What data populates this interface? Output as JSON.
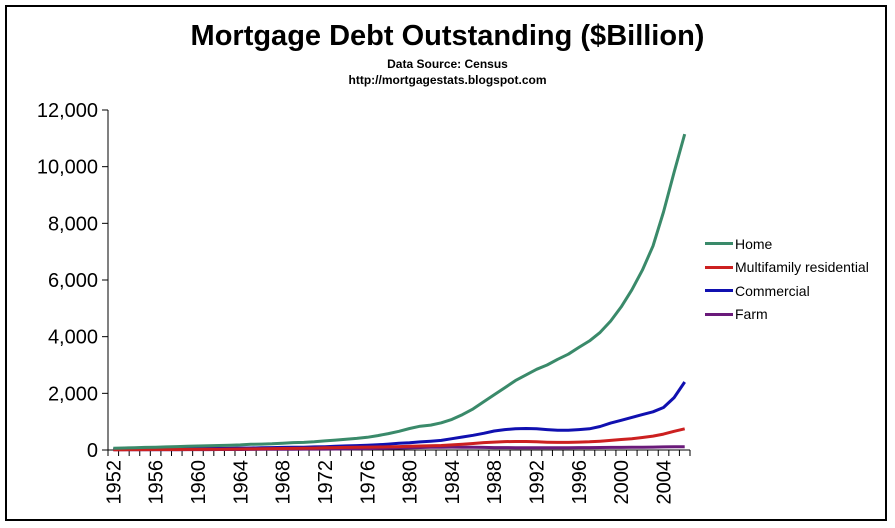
{
  "chart_data": {
    "type": "line",
    "title": "Mortgage Debt Outstanding ($Billion)",
    "subtitle": [
      "Data Source: Census",
      "http://mortgagestats.blogspot.com"
    ],
    "xlabel": "",
    "ylabel": "",
    "ylim": [
      0,
      12000
    ],
    "yticks": [
      "0",
      "2,000",
      "4,000",
      "6,000",
      "8,000",
      "10,000",
      "12,000"
    ],
    "xtick_labels": [
      "1952",
      "1956",
      "1960",
      "1964",
      "1968",
      "1972",
      "1976",
      "1980",
      "1984",
      "1988",
      "1992",
      "1996",
      "2000",
      "2004"
    ],
    "x": [
      1952,
      1953,
      1954,
      1955,
      1956,
      1957,
      1958,
      1959,
      1960,
      1961,
      1962,
      1963,
      1964,
      1965,
      1966,
      1967,
      1968,
      1969,
      1970,
      1971,
      1972,
      1973,
      1974,
      1975,
      1976,
      1977,
      1978,
      1979,
      1980,
      1981,
      1982,
      1983,
      1984,
      1985,
      1986,
      1987,
      1988,
      1989,
      1990,
      1991,
      1992,
      1993,
      1994,
      1995,
      1996,
      1997,
      1998,
      1999,
      2000,
      2001,
      2002,
      2003,
      2004,
      2005,
      2006
    ],
    "legend_position": "right",
    "grid": false,
    "series": [
      {
        "name": "Home",
        "color": "#3A8A6A",
        "values": [
          60,
          70,
          80,
          90,
          100,
          110,
          120,
          130,
          140,
          150,
          160,
          170,
          180,
          200,
          210,
          220,
          240,
          260,
          270,
          290,
          320,
          350,
          380,
          410,
          450,
          510,
          580,
          660,
          760,
          840,
          880,
          960,
          1080,
          1250,
          1450,
          1700,
          1950,
          2200,
          2450,
          2650,
          2850,
          3000,
          3200,
          3380,
          3620,
          3850,
          4150,
          4550,
          5050,
          5650,
          6350,
          7200,
          8400,
          9800,
          11150
        ]
      },
      {
        "name": "Multifamily residential",
        "color": "#CC2020",
        "values": [
          10,
          12,
          13,
          15,
          16,
          17,
          18,
          20,
          22,
          25,
          28,
          32,
          36,
          40,
          44,
          48,
          52,
          58,
          62,
          68,
          76,
          84,
          92,
          98,
          102,
          106,
          112,
          120,
          130,
          140,
          148,
          160,
          180,
          205,
          230,
          260,
          280,
          295,
          300,
          300,
          290,
          275,
          270,
          270,
          280,
          290,
          310,
          340,
          370,
          400,
          440,
          490,
          560,
          660,
          750
        ]
      },
      {
        "name": "Commercial",
        "color": "#1010B0",
        "values": [
          20,
          22,
          25,
          28,
          32,
          36,
          40,
          44,
          48,
          52,
          56,
          60,
          66,
          72,
          78,
          84,
          90,
          96,
          100,
          108,
          118,
          130,
          144,
          155,
          165,
          185,
          210,
          235,
          255,
          285,
          310,
          340,
          400,
          460,
          520,
          590,
          670,
          720,
          750,
          760,
          750,
          720,
          700,
          700,
          720,
          750,
          830,
          950,
          1050,
          1150,
          1250,
          1350,
          1500,
          1850,
          2400
        ]
      },
      {
        "name": "Farm",
        "color": "#6A1A7A",
        "values": [
          8,
          9,
          10,
          10,
          11,
          11,
          12,
          13,
          14,
          15,
          16,
          17,
          19,
          21,
          23,
          25,
          27,
          29,
          30,
          31,
          33,
          36,
          40,
          45,
          50,
          56,
          63,
          72,
          82,
          88,
          95,
          100,
          102,
          100,
          95,
          90,
          86,
          84,
          82,
          80,
          80,
          80,
          81,
          82,
          84,
          86,
          88,
          90,
          93,
          96,
          100,
          104,
          108,
          112,
          115
        ]
      }
    ]
  }
}
